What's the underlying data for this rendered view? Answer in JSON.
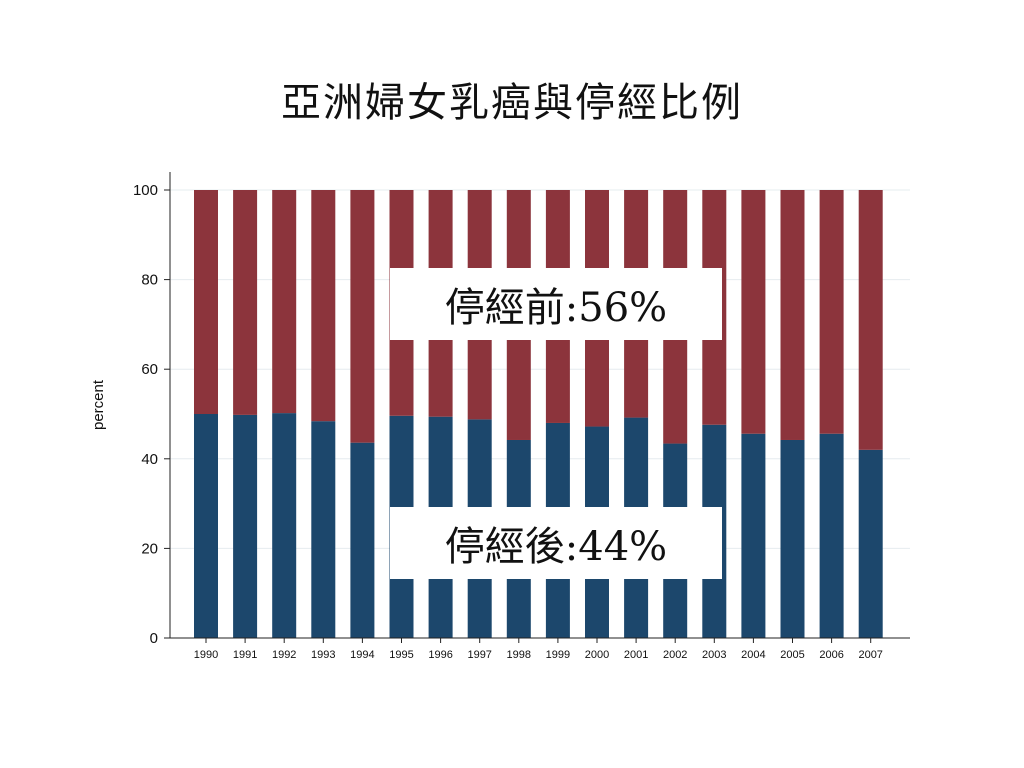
{
  "slide": {
    "title": "亞洲婦女乳癌與停經比例",
    "callout_pre": "停經前:56%",
    "callout_post": "停經後:44%"
  },
  "chart_data": {
    "type": "bar",
    "stacked": true,
    "percent_stacked": true,
    "categories": [
      "1990",
      "1991",
      "1992",
      "1993",
      "1994",
      "1995",
      "1996",
      "1997",
      "1998",
      "1999",
      "2000",
      "2001",
      "2002",
      "2003",
      "2004",
      "2005",
      "2006",
      "2007"
    ],
    "series": [
      {
        "values": [
          50,
          49.8,
          50.2,
          48.4,
          43.6,
          49.6,
          49.4,
          48.8,
          44.2,
          48,
          47.2,
          49.2,
          43.4,
          47.6,
          45.6,
          44.2,
          45.6,
          42
        ],
        "color": "#1c476c"
      },
      {
        "values": [
          50,
          50.2,
          49.8,
          51.6,
          56.4,
          50.4,
          50.6,
          51.2,
          55.8,
          52,
          52.8,
          50.8,
          56.6,
          52.4,
          54.4,
          55.8,
          54.4,
          58
        ],
        "color": "#8c343c"
      }
    ],
    "ylabel": "percent",
    "ylim": [
      0,
      100
    ],
    "yticks": [
      0,
      20,
      40,
      60,
      80,
      100
    ],
    "grid": true
  }
}
